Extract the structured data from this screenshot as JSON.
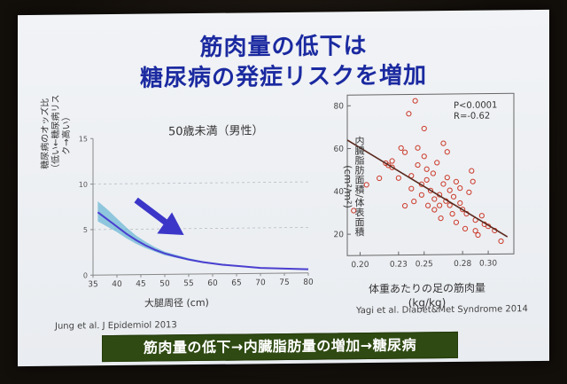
{
  "slide": {
    "title_line1": "筋肉量の低下は",
    "title_line2": "糖尿病の発症リスクを増加",
    "banner": "筋肉量の低下→内臓脂肪量の増加→糖尿病"
  },
  "colors": {
    "title": "#1b2aa0",
    "curve": "#4a3fd0",
    "band": "#6fb8d6",
    "arrow": "#3b36c8",
    "scatter_point": "#cc3a2a",
    "trendline": "#5a2a1e",
    "banner_bg": "#2f4a12"
  },
  "chart_data": [
    {
      "type": "line",
      "title": "50歳未満（男性）",
      "xlabel": "大腿周径 (cm)",
      "ylabel": "糖尿病のオッズ比\n（低い←糖尿病リスク→高い）",
      "xlim": [
        35,
        80
      ],
      "ylim": [
        0,
        15
      ],
      "x_ticks": [
        "35",
        "40",
        "45",
        "50",
        "55",
        "60",
        "65",
        "70",
        "75",
        "80"
      ],
      "y_ticks": [
        "0",
        "5",
        "10",
        "15"
      ],
      "grid": "horizontal dashed at 5 and 10",
      "legend": "none",
      "annotation": "downward arrow",
      "citation": "Jung et al. J Epidemiol 2013",
      "series": [
        {
          "x": [
            36,
            38,
            40,
            42,
            44,
            46,
            48,
            50,
            52,
            55,
            58,
            62,
            66,
            70,
            75,
            80
          ],
          "values": [
            6.9,
            6.1,
            5.3,
            4.5,
            3.8,
            3.2,
            2.7,
            2.3,
            2.0,
            1.6,
            1.3,
            1.0,
            0.8,
            0.6,
            0.5,
            0.4
          ],
          "lower": [
            5.9,
            5.3,
            4.7,
            4.0,
            3.4,
            2.9,
            2.5,
            2.1,
            1.85,
            1.5,
            1.2,
            0.95,
            0.75,
            0.58,
            0.45,
            0.35
          ],
          "upper": [
            8.1,
            7.2,
            6.2,
            5.2,
            4.3,
            3.6,
            3.0,
            2.5,
            2.2,
            1.75,
            1.4,
            1.1,
            0.85,
            0.65,
            0.52,
            0.45
          ]
        }
      ]
    },
    {
      "type": "scatter",
      "xlabel": "体重あたりの足の筋肉量\n(kg/kg)",
      "ylabel": "内臓脂肪面積/体表面積\n(cm²/m²)",
      "xlim": [
        0.19,
        0.32
      ],
      "ylim": [
        10,
        85
      ],
      "x_ticks": [
        "0.20",
        "0.23",
        "0.25",
        "0.28",
        "0.30"
      ],
      "x_tick_values": [
        0.2,
        0.23,
        0.25,
        0.28,
        0.3
      ],
      "y_ticks": [
        "20",
        "40",
        "60",
        "80"
      ],
      "stats": {
        "p": "P<0.0001",
        "r": "R=-0.62"
      },
      "citation": "Yagi et al. Diabet&Met Syndrome 2014",
      "trendline": {
        "x": [
          0.19,
          0.315
        ],
        "y": [
          64,
          18
        ]
      },
      "points": [
        [
          0.195,
          31
        ],
        [
          0.205,
          43
        ],
        [
          0.215,
          46
        ],
        [
          0.22,
          53
        ],
        [
          0.222,
          52
        ],
        [
          0.225,
          54
        ],
        [
          0.225,
          51
        ],
        [
          0.23,
          46
        ],
        [
          0.232,
          60
        ],
        [
          0.235,
          58
        ],
        [
          0.235,
          33
        ],
        [
          0.238,
          76
        ],
        [
          0.24,
          47
        ],
        [
          0.24,
          41
        ],
        [
          0.242,
          35
        ],
        [
          0.243,
          82
        ],
        [
          0.245,
          60
        ],
        [
          0.245,
          52
        ],
        [
          0.248,
          43
        ],
        [
          0.248,
          38
        ],
        [
          0.25,
          69
        ],
        [
          0.25,
          56
        ],
        [
          0.252,
          50
        ],
        [
          0.252,
          45
        ],
        [
          0.253,
          33
        ],
        [
          0.255,
          40
        ],
        [
          0.257,
          48
        ],
        [
          0.258,
          36
        ],
        [
          0.258,
          31
        ],
        [
          0.26,
          53
        ],
        [
          0.262,
          38
        ],
        [
          0.262,
          33
        ],
        [
          0.263,
          27
        ],
        [
          0.265,
          62
        ],
        [
          0.265,
          43
        ],
        [
          0.267,
          35
        ],
        [
          0.268,
          58
        ],
        [
          0.268,
          46
        ],
        [
          0.27,
          40
        ],
        [
          0.27,
          33
        ],
        [
          0.272,
          29
        ],
        [
          0.273,
          37
        ],
        [
          0.275,
          25
        ],
        [
          0.275,
          44
        ],
        [
          0.278,
          41
        ],
        [
          0.278,
          34
        ],
        [
          0.28,
          31
        ],
        [
          0.282,
          22
        ],
        [
          0.283,
          29
        ],
        [
          0.285,
          39
        ],
        [
          0.287,
          49
        ],
        [
          0.288,
          44
        ],
        [
          0.29,
          26
        ],
        [
          0.29,
          21
        ],
        [
          0.292,
          19
        ],
        [
          0.295,
          28
        ],
        [
          0.297,
          24
        ],
        [
          0.3,
          23
        ],
        [
          0.305,
          21
        ],
        [
          0.31,
          16
        ]
      ]
    }
  ]
}
